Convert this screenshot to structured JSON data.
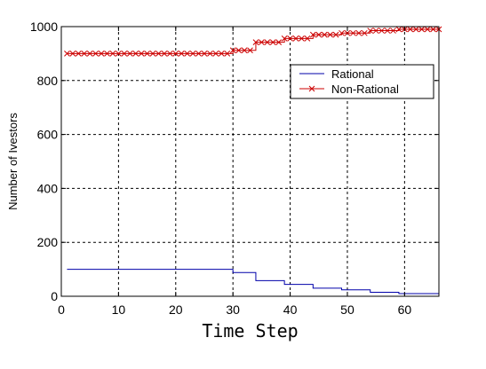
{
  "chart_data": {
    "type": "line",
    "title": "",
    "xlabel": "Time Step",
    "ylabel": "Number of Ivestors",
    "xlim": [
      0,
      66
    ],
    "ylim": [
      0,
      1000
    ],
    "xticks": [
      0,
      10,
      20,
      30,
      40,
      50,
      60
    ],
    "yticks": [
      0,
      200,
      400,
      600,
      800,
      1000
    ],
    "grid": true,
    "legend_position": "top-right",
    "series": [
      {
        "name": "Rational",
        "color": "#0000aa",
        "marker": "none",
        "steps": [
          [
            1,
            100
          ],
          [
            30,
            88
          ],
          [
            34,
            58
          ],
          [
            39,
            44
          ],
          [
            44,
            30
          ],
          [
            49,
            24
          ],
          [
            54,
            15
          ],
          [
            59,
            10
          ],
          [
            66,
            10
          ]
        ]
      },
      {
        "name": "Non-Rational",
        "color": "#cc0000",
        "marker": "x",
        "steps": [
          [
            1,
            900
          ],
          [
            30,
            912
          ],
          [
            34,
            942
          ],
          [
            39,
            956
          ],
          [
            44,
            970
          ],
          [
            49,
            976
          ],
          [
            54,
            985
          ],
          [
            59,
            990
          ],
          [
            66,
            990
          ]
        ]
      }
    ]
  }
}
